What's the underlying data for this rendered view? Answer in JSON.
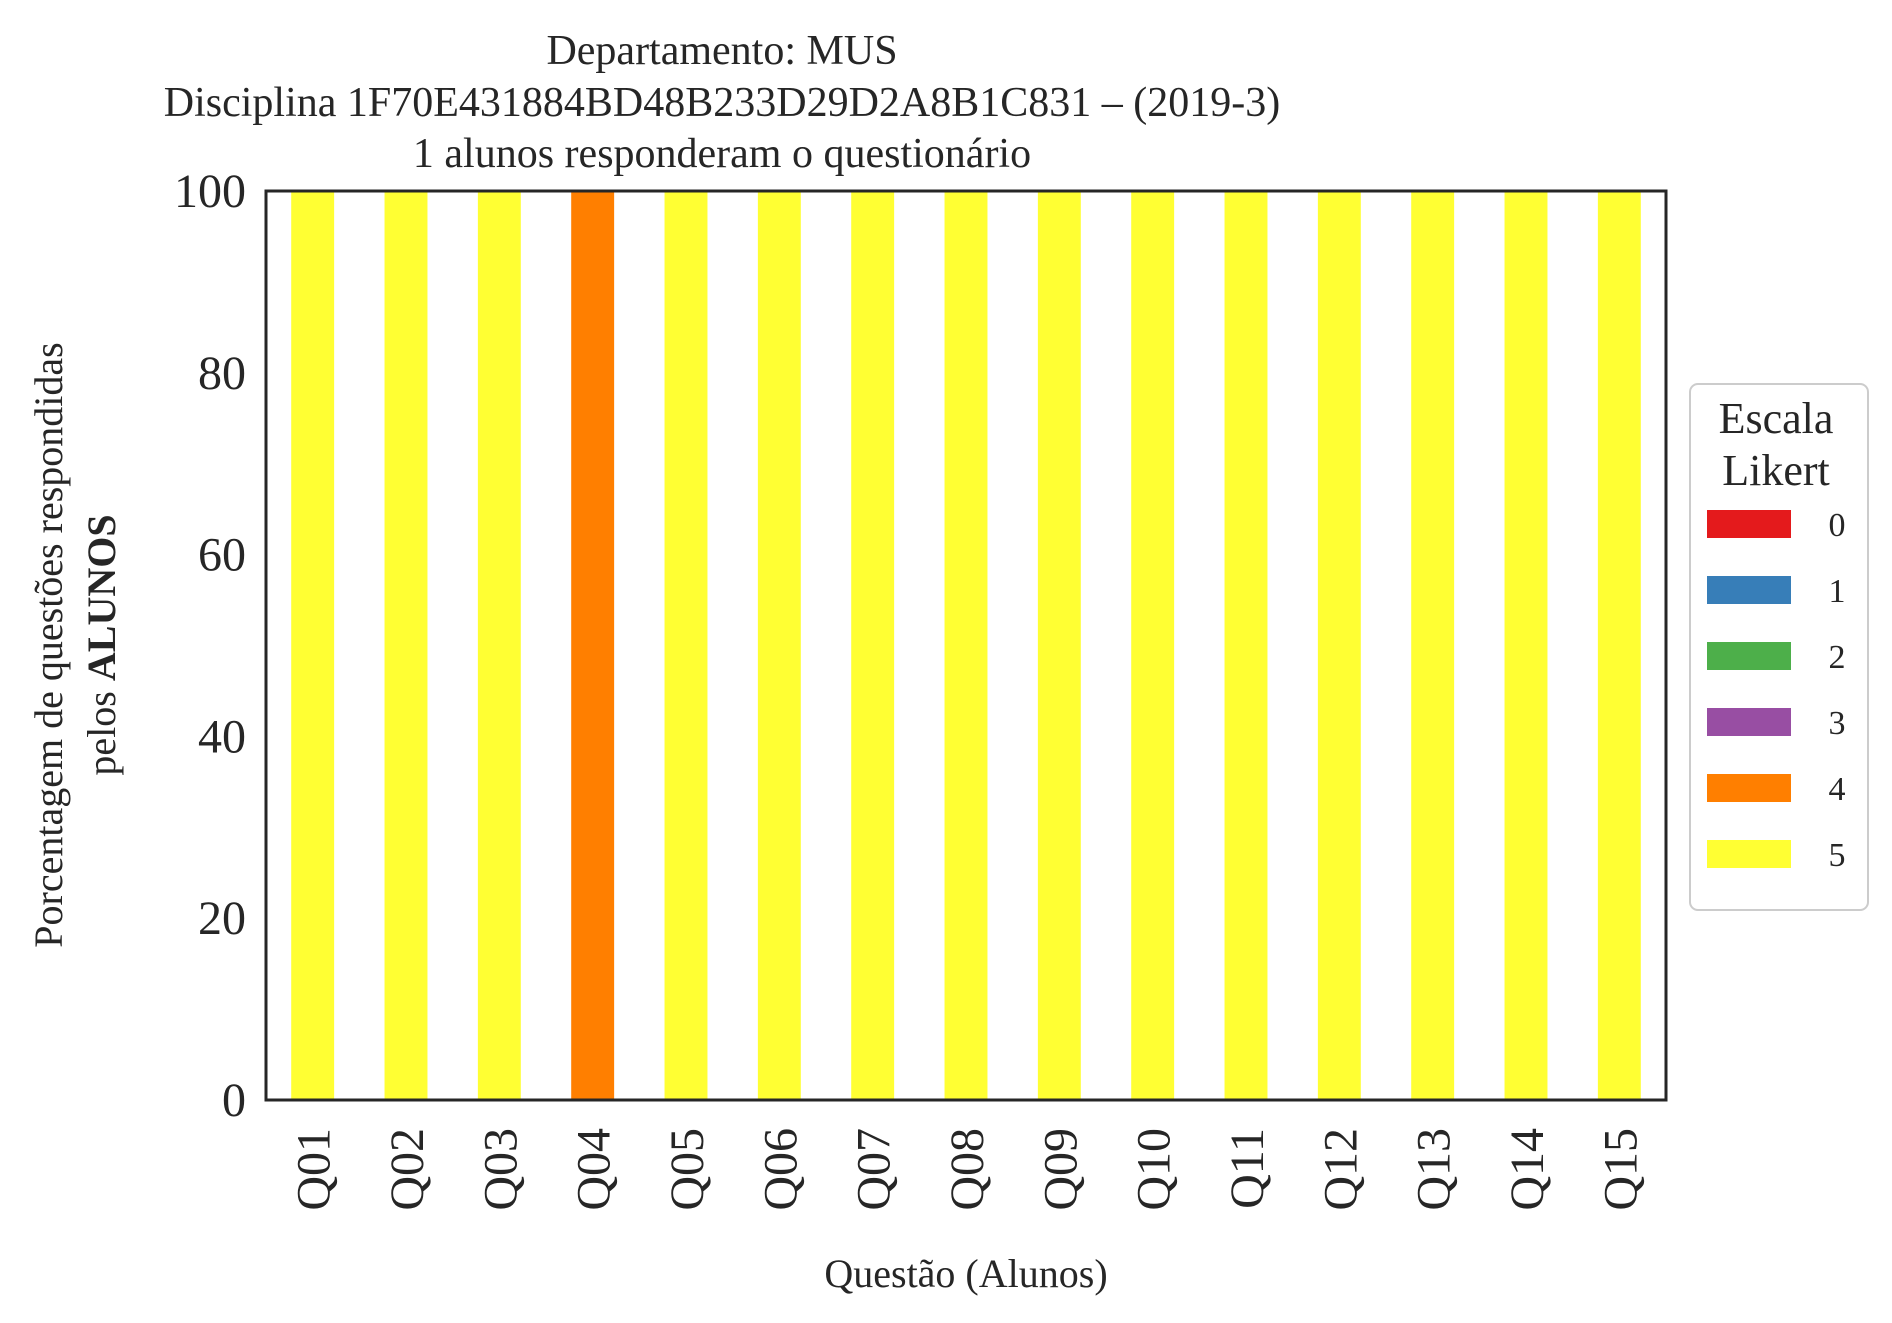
{
  "chart_data": {
    "type": "bar",
    "stacked": true,
    "title_lines": [
      "Departamento: MUS",
      "Disciplina 1F70E431884BD48B233D29D2A8B1C831 – (2019-3)",
      "1 alunos responderam o questionário"
    ],
    "xlabel": "Questão (Alunos)",
    "ylabel_line1": "Porcentagem de questões respondidas",
    "ylabel_line2_prefix": "pelos ",
    "ylabel_line2_bold": "ALUNOS",
    "ylim": [
      0,
      100
    ],
    "yticks": [
      "0",
      "20",
      "40",
      "60",
      "80",
      "100"
    ],
    "categories": [
      "Q01",
      "Q02",
      "Q03",
      "Q04",
      "Q05",
      "Q06",
      "Q07",
      "Q08",
      "Q09",
      "Q10",
      "Q11",
      "Q12",
      "Q13",
      "Q14",
      "Q15"
    ],
    "series": [
      {
        "name": "0",
        "color": "#e41a1c",
        "values": [
          0,
          0,
          0,
          0,
          0,
          0,
          0,
          0,
          0,
          0,
          0,
          0,
          0,
          0,
          0
        ]
      },
      {
        "name": "1",
        "color": "#377eb8",
        "values": [
          0,
          0,
          0,
          0,
          0,
          0,
          0,
          0,
          0,
          0,
          0,
          0,
          0,
          0,
          0
        ]
      },
      {
        "name": "2",
        "color": "#4daf4a",
        "values": [
          0,
          0,
          0,
          0,
          0,
          0,
          0,
          0,
          0,
          0,
          0,
          0,
          0,
          0,
          0
        ]
      },
      {
        "name": "3",
        "color": "#984ea3",
        "values": [
          0,
          0,
          0,
          0,
          0,
          0,
          0,
          0,
          0,
          0,
          0,
          0,
          0,
          0,
          0
        ]
      },
      {
        "name": "4",
        "color": "#ff7f00",
        "values": [
          0,
          0,
          0,
          100,
          0,
          0,
          0,
          0,
          0,
          0,
          0,
          0,
          0,
          0,
          0
        ]
      },
      {
        "name": "5",
        "color": "#ffff33",
        "values": [
          100,
          100,
          100,
          0,
          100,
          100,
          100,
          100,
          100,
          100,
          100,
          100,
          100,
          100,
          100
        ]
      }
    ],
    "legend": {
      "title_lines": [
        "Escala",
        "Likert"
      ],
      "placement": "right"
    },
    "grid": false
  }
}
